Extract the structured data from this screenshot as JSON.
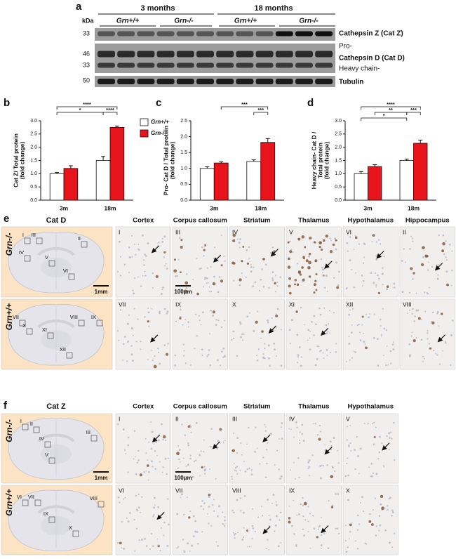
{
  "panel_labels": [
    "a",
    "b",
    "c",
    "d",
    "e",
    "f"
  ],
  "blot": {
    "kda_header": "kDa",
    "groups": [
      "3 months",
      "18 months"
    ],
    "genotypes": [
      "Grn+/+",
      "Grn-/-",
      "Grn+/+",
      "Grn-/-"
    ],
    "markers": [
      "33",
      "46",
      "33",
      "50"
    ],
    "proteins": [
      "Cathepsin Z (Cat Z)",
      "Pro-",
      "Cathepsin D (Cat D)",
      "Heavy chain-",
      "Tubulin"
    ]
  },
  "chart_data": [
    {
      "type": "bar",
      "ylabel": [
        "Cat Z/ Total protein",
        "(fold change)"
      ],
      "categories": [
        "3m",
        "18m"
      ],
      "series": [
        {
          "name": "Grn+/+",
          "color": "#ffffff",
          "values": [
            1.0,
            1.5
          ],
          "errors": [
            0.05,
            0.15
          ]
        },
        {
          "name": "Grn-/-",
          "color": "#e8141b",
          "values": [
            1.2,
            2.75
          ],
          "errors": [
            0.1,
            0.05
          ]
        }
      ],
      "ylim": [
        0,
        3
      ],
      "yticks": [
        {
          "value": 0,
          "label": "0.0"
        },
        {
          "value": 0.5,
          "label": "0.5"
        },
        {
          "value": 1,
          "label": "1.0"
        },
        {
          "value": 1.5,
          "label": "1.5"
        },
        {
          "value": 2,
          "label": "2.0"
        },
        {
          "value": 2.5,
          "label": "2.5"
        },
        {
          "value": 3,
          "label": "3.0"
        }
      ],
      "legend": "upper right",
      "annotations": [
        "****",
        "*",
        "****"
      ]
    },
    {
      "type": "bar",
      "ylabel": [
        "Pro- Cat D / Total protein",
        "(fold change)"
      ],
      "categories": [
        "3m",
        "18m"
      ],
      "series": [
        {
          "color": "#ffffff",
          "values": [
            1.0,
            1.22
          ],
          "errors": [
            0.05,
            0.05
          ]
        },
        {
          "color": "#e8141b",
          "values": [
            1.17,
            1.82
          ],
          "errors": [
            0.04,
            0.12
          ]
        }
      ],
      "ylim": [
        0,
        2.5
      ],
      "yticks": [
        {
          "value": 0,
          "label": "0.0"
        },
        {
          "value": 0.5,
          "label": "0.5"
        },
        {
          "value": 1,
          "label": "1.0"
        },
        {
          "value": 1.5,
          "label": "1.5"
        },
        {
          "value": 2,
          "label": "2.0"
        },
        {
          "value": 2.5,
          "label": "2.5"
        }
      ],
      "annotations": [
        "***",
        "***"
      ]
    },
    {
      "type": "bar",
      "ylabel": [
        "Heavy chain- Cat D /",
        "Total protein",
        "(fold change)"
      ],
      "categories": [
        "3m",
        "18m"
      ],
      "series": [
        {
          "color": "#ffffff",
          "values": [
            1.0,
            1.5
          ],
          "errors": [
            0.08,
            0.05
          ]
        },
        {
          "color": "#e8141b",
          "values": [
            1.27,
            2.15
          ],
          "errors": [
            0.07,
            0.12
          ]
        }
      ],
      "ylim": [
        0,
        3
      ],
      "yticks": [
        {
          "value": 0,
          "label": "0.0"
        },
        {
          "value": 0.5,
          "label": "0.5"
        },
        {
          "value": 1,
          "label": "1.0"
        },
        {
          "value": 1.5,
          "label": "1.5"
        },
        {
          "value": 2,
          "label": "2.0"
        },
        {
          "value": 2.5,
          "label": "2.5"
        },
        {
          "value": 3,
          "label": "3.0"
        }
      ],
      "annotations": [
        "****",
        "**",
        "***",
        "*"
      ]
    }
  ],
  "histology": [
    {
      "stain": "Cat D",
      "regions": [
        "Cortex",
        "Corpus callosum",
        "Striatum",
        "Thalamus",
        "Hypothalamus",
        "Hippocampus"
      ],
      "rows": [
        {
          "genotype": "Grn-/-",
          "tiles": [
            "I",
            "III",
            "IV",
            "V",
            "VI",
            "II"
          ],
          "boxes": [
            "I",
            "III",
            "II",
            "IV",
            "V",
            "VI"
          ]
        },
        {
          "genotype": "Grn+/+",
          "tiles": [
            "VII",
            "IX",
            "X",
            "XI",
            "XII",
            "VIII"
          ],
          "boxes": [
            "VII",
            "VIII",
            "IX",
            "X",
            "XI",
            "XII"
          ]
        }
      ],
      "scale_bars": [
        "1mm",
        "100μm"
      ]
    },
    {
      "stain": "Cat Z",
      "regions": [
        "Cortex",
        "Corpus callosum",
        "Striatum",
        "Thalamus",
        "Hypothalamus"
      ],
      "rows": [
        {
          "genotype": "Grn-/-",
          "tiles": [
            "I",
            "II",
            "III",
            "IV",
            "V"
          ],
          "boxes": [
            "I",
            "II",
            "III",
            "IV",
            "V"
          ]
        },
        {
          "genotype": "Grn+/+",
          "tiles": [
            "VI",
            "VII",
            "VIII",
            "IX",
            "X"
          ],
          "boxes": [
            "VI",
            "VII",
            "VIII",
            "IX",
            "X"
          ]
        }
      ],
      "scale_bars": [
        "1mm",
        "100μm"
      ]
    }
  ]
}
